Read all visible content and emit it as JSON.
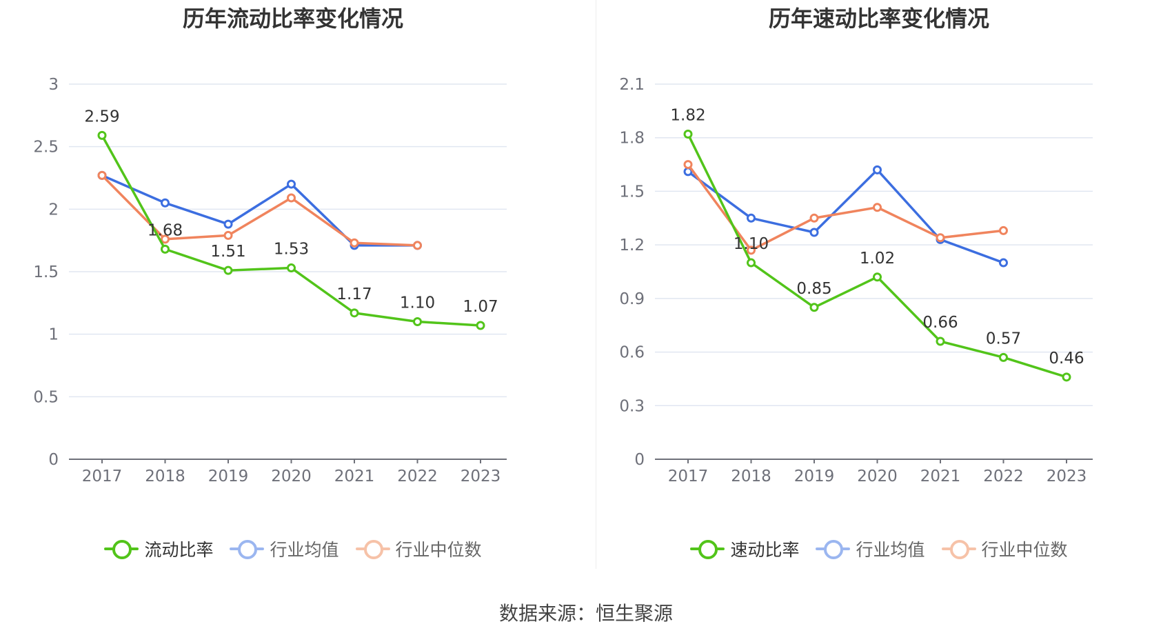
{
  "chart_data": [
    {
      "type": "line",
      "title": "历年流动比率变化情况",
      "categories": [
        "2017",
        "2018",
        "2019",
        "2020",
        "2021",
        "2022",
        "2023"
      ],
      "ylim": [
        0,
        3
      ],
      "yticks": [
        "0",
        "0.5",
        "1",
        "1.5",
        "2",
        "2.5",
        "3"
      ],
      "ytick_values": [
        0,
        0.5,
        1,
        1.5,
        2,
        2.5,
        3
      ],
      "grid": true,
      "legend_position": "bottom",
      "series": [
        {
          "name": "流动比率",
          "color": "#52c41a",
          "values": [
            2.59,
            1.68,
            1.51,
            1.53,
            1.17,
            1.1,
            1.07
          ],
          "labels": [
            "2.59",
            "1.68",
            "1.51",
            "1.53",
            "1.17",
            "1.10",
            "1.07"
          ]
        },
        {
          "name": "行业均值",
          "color": "#3c6ee0",
          "values": [
            2.27,
            2.05,
            1.88,
            2.2,
            1.71,
            1.71,
            null
          ]
        },
        {
          "name": "行业中位数",
          "color": "#f0845d",
          "values": [
            2.27,
            1.76,
            1.79,
            2.09,
            1.73,
            1.71,
            null
          ]
        }
      ]
    },
    {
      "type": "line",
      "title": "历年速动比率变化情况",
      "categories": [
        "2017",
        "2018",
        "2019",
        "2020",
        "2021",
        "2022",
        "2023"
      ],
      "ylim": [
        0,
        2.1
      ],
      "yticks": [
        "0",
        "0.3",
        "0.6",
        "0.9",
        "1.2",
        "1.5",
        "1.8",
        "2.1"
      ],
      "ytick_values": [
        0,
        0.3,
        0.6,
        0.9,
        1.2,
        1.5,
        1.8,
        2.1
      ],
      "grid": true,
      "legend_position": "bottom",
      "series": [
        {
          "name": "速动比率",
          "color": "#52c41a",
          "values": [
            1.82,
            1.1,
            0.85,
            1.02,
            0.66,
            0.57,
            0.46
          ],
          "labels": [
            "1.82",
            "1.10",
            "0.85",
            "1.02",
            "0.66",
            "0.57",
            "0.46"
          ]
        },
        {
          "name": "行业均值",
          "color": "#3c6ee0",
          "values": [
            1.61,
            1.35,
            1.27,
            1.62,
            1.23,
            1.1,
            null
          ]
        },
        {
          "name": "行业中位数",
          "color": "#f0845d",
          "values": [
            1.65,
            1.17,
            1.35,
            1.41,
            1.24,
            1.28,
            null
          ]
        }
      ]
    }
  ],
  "source": "数据来源：恒生聚源",
  "colors": {
    "legend_inactive_blue": "#9bb6f0",
    "legend_inactive_orange": "#f6c2a8"
  }
}
